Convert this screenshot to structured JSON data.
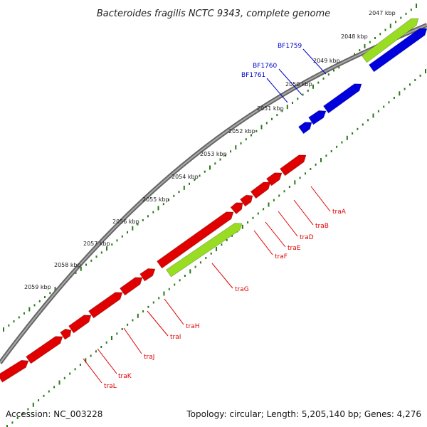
{
  "title": "Bacteroides fragilis NCTC 9343, complete genome",
  "footer": {
    "accession": "Accession: NC_003228",
    "summary": "Topology: circular; Length: 5,205,140 bp; Genes: 4,276"
  },
  "kbp_labels": [
    "2047 kbp",
    "2048 kbp",
    "2049 kbp",
    "2050 kbp",
    "2051 kbp",
    "2052 kbp",
    "2053 kbp",
    "2054 kbp",
    "2055 kbp",
    "2056 kbp",
    "2057 kbp",
    "2058 kbp",
    "2059 kbp"
  ],
  "genes_top": [
    "BF1759",
    "BF1760",
    "BF1761"
  ],
  "genes_bottom": [
    "traA",
    "traB",
    "traD",
    "traE",
    "traF",
    "traG",
    "traH",
    "traI",
    "traJ",
    "traK",
    "traL"
  ],
  "colors": {
    "backbone": "#888888",
    "tick": "#2a7a1a",
    "gene_red": "#e00000",
    "gene_blue": "#0000dd",
    "gene_green": "#99dd22",
    "label_red": "#e00000",
    "label_blue": "#0000cc"
  }
}
